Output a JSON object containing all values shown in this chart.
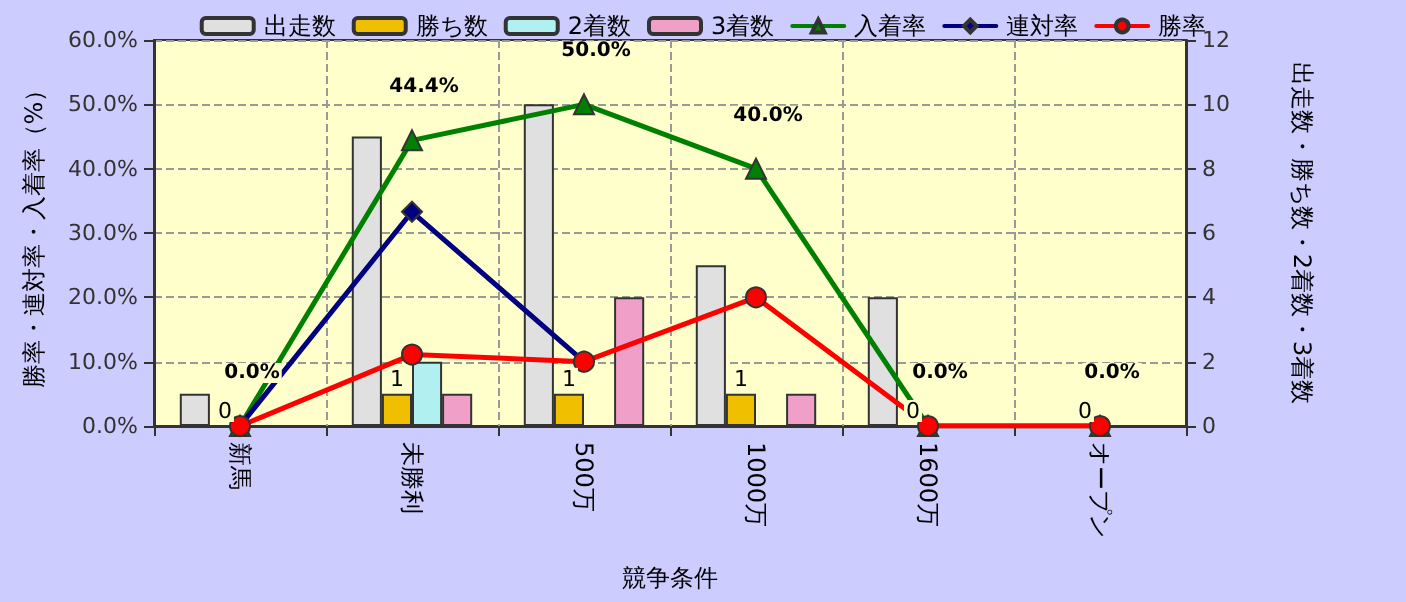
{
  "chart_data": {
    "type": "bar",
    "xlabel": "競争条件",
    "ylabel": "勝率・連対率・入着率（%）",
    "y2label": "出走数・勝ち数・2着数・3着数",
    "categories": [
      "新馬",
      "未勝利",
      "500万",
      "1000万",
      "1600万",
      "オープン"
    ],
    "series": [
      {
        "name": "出走数",
        "type": "bar",
        "axis": "y2",
        "color": "#e0e0e0",
        "values": [
          1,
          9,
          10,
          5,
          4,
          0
        ]
      },
      {
        "name": "勝ち数",
        "type": "bar",
        "axis": "y2",
        "color": "#f0c000",
        "values": [
          0,
          1,
          1,
          1,
          0,
          0
        ],
        "value_labels": [
          "0",
          "1",
          "1",
          "1",
          "0",
          "0"
        ]
      },
      {
        "name": "2着数",
        "type": "bar",
        "axis": "y2",
        "color": "#b0f0f0",
        "values": [
          0,
          2,
          0,
          0,
          0,
          0
        ]
      },
      {
        "name": "3着数",
        "type": "bar",
        "axis": "y2",
        "color": "#f0a0c8",
        "values": [
          0,
          1,
          4,
          1,
          0,
          0
        ]
      },
      {
        "name": "入着率",
        "type": "line",
        "color": "#008000",
        "marker": "triangle",
        "values": [
          0,
          44.4,
          50.0,
          40.0,
          0,
          0
        ],
        "value_labels": [
          "0.0%",
          "44.4%",
          "50.0%",
          "40.0%",
          "0.0%",
          "0.0%"
        ]
      },
      {
        "name": "連対率",
        "type": "line",
        "color": "#000080",
        "marker": "diamond",
        "values": [
          0,
          33.3,
          10.0,
          null,
          null,
          null
        ]
      },
      {
        "name": "勝率",
        "type": "line",
        "color": "#ff0000",
        "marker": "circle",
        "values": [
          0,
          11.1,
          10.0,
          20.0,
          0,
          0
        ]
      }
    ],
    "ylim": [
      0,
      60
    ],
    "yticks": [
      {
        "value": 0,
        "label": "0.0%"
      },
      {
        "value": 10,
        "label": "10.0%"
      },
      {
        "value": 20,
        "label": "20.0%"
      },
      {
        "value": 30,
        "label": "30.0%"
      },
      {
        "value": 40,
        "label": "40.0%"
      },
      {
        "value": 50,
        "label": "50.0%"
      },
      {
        "value": 60,
        "label": "60.0%"
      }
    ],
    "y2lim": [
      0,
      12
    ],
    "y2ticks": [
      0,
      2,
      4,
      6,
      8,
      10,
      12
    ],
    "grid": true,
    "legend": "top"
  }
}
